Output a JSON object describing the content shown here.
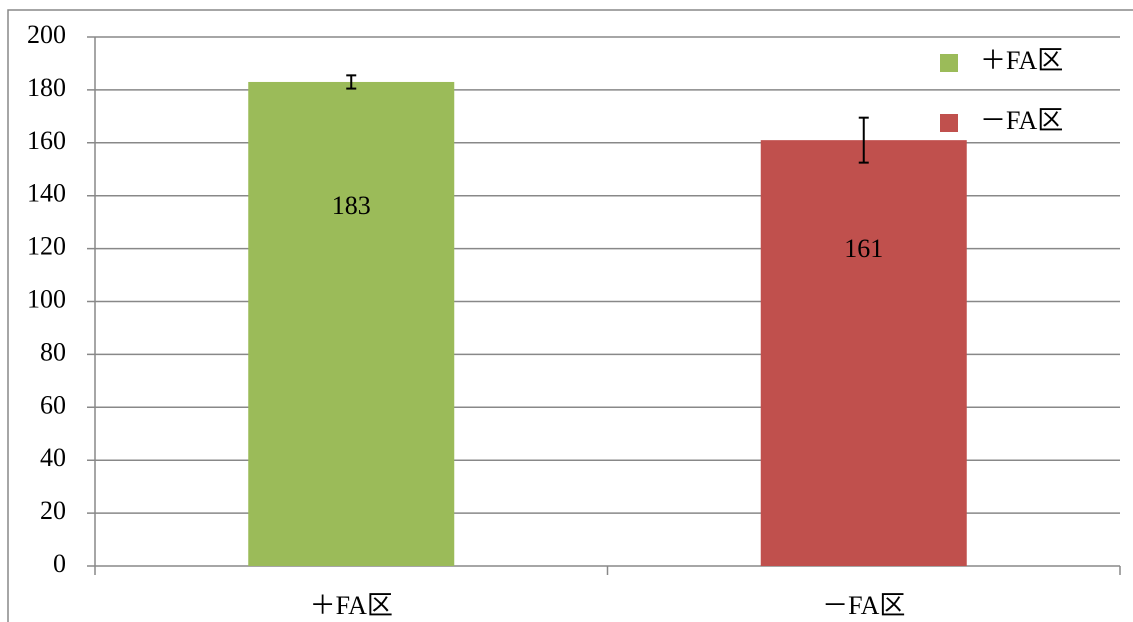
{
  "chart_data": {
    "type": "bar",
    "categories": [
      "＋FA区",
      "－FA区"
    ],
    "values": [
      183,
      161
    ],
    "errors": [
      2.5,
      8.5
    ],
    "colors": [
      "#9bbb59",
      "#c0504d"
    ],
    "ylim": [
      0,
      200
    ],
    "yticks": [
      0,
      20,
      40,
      60,
      80,
      100,
      120,
      140,
      160,
      180,
      200
    ],
    "grid": true,
    "legend": "top-right"
  }
}
